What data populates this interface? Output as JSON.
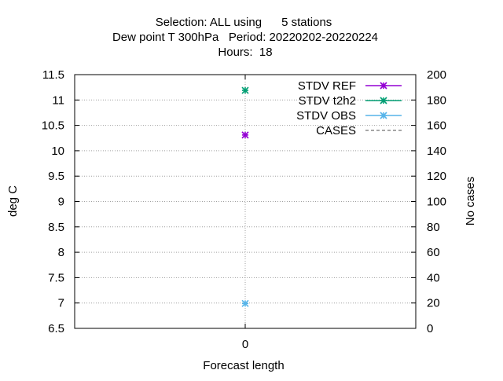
{
  "chart_data": {
    "type": "scatter",
    "title_lines": [
      "Selection: ALL using      5 stations",
      "Dew point T 300hPa   Period: 20220202-20220224",
      "Hours:  18"
    ],
    "xlabel": "Forecast length",
    "ylabel": "deg C",
    "y2label": "No cases",
    "x_ticks": [
      "0"
    ],
    "y_ticks": [
      "6.5",
      "7",
      "7.5",
      "8",
      "8.5",
      "9",
      "9.5",
      "10",
      "10.5",
      "11",
      "11.5"
    ],
    "y2_ticks": [
      "0",
      "20",
      "40",
      "60",
      "80",
      "100",
      "120",
      "140",
      "160",
      "180",
      "200"
    ],
    "xlim": [
      -1,
      1
    ],
    "ylim": [
      6.5,
      11.5
    ],
    "y2lim": [
      0,
      200
    ],
    "grid": true,
    "legend_position": "top-right",
    "series": [
      {
        "name": "STDV REF",
        "color": "#9400d3",
        "axis": "y",
        "x": [
          0
        ],
        "values": [
          10.31
        ],
        "style": "line+points"
      },
      {
        "name": "STDV t2h2",
        "color": "#009e73",
        "axis": "y",
        "x": [
          0
        ],
        "values": [
          11.19
        ],
        "style": "line+points"
      },
      {
        "name": "STDV OBS",
        "color": "#56b4e9",
        "axis": "y",
        "x": [
          0
        ],
        "values": [
          6.99
        ],
        "style": "line+points"
      },
      {
        "name": "CASES",
        "color": "#888888",
        "axis": "y2",
        "x": [],
        "values": [],
        "style": "dashed"
      }
    ]
  }
}
